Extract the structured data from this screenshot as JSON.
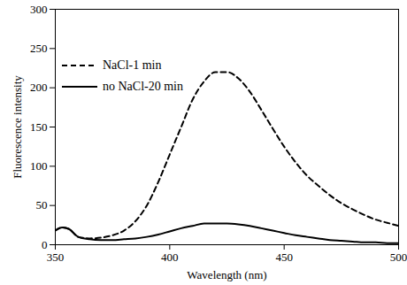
{
  "chart_data": {
    "type": "line",
    "x_label": "Wavelength (nm)",
    "y_label": "Fluorescence intensity",
    "x": [
      350,
      353,
      356,
      360,
      365,
      370,
      375,
      380,
      385,
      390,
      395,
      400,
      405,
      410,
      415,
      420,
      425,
      430,
      435,
      440,
      445,
      450,
      455,
      460,
      465,
      470,
      475,
      480,
      485,
      490,
      495,
      500
    ],
    "series": [
      {
        "name": "NaCl-1 min",
        "color": "#000000",
        "line_style": "dashed",
        "values": [
          18,
          22,
          20,
          10,
          8,
          9,
          12,
          18,
          30,
          50,
          80,
          115,
          150,
          185,
          208,
          220,
          220,
          212,
          195,
          172,
          148,
          125,
          105,
          88,
          75,
          63,
          53,
          45,
          38,
          32,
          28,
          24
        ]
      },
      {
        "name": "no NaCl-20 min",
        "color": "#000000",
        "line_style": "solid",
        "values": [
          18,
          22,
          20,
          10,
          7,
          6,
          6,
          7,
          8,
          10,
          13,
          17,
          21,
          24,
          27,
          27,
          27,
          26,
          24,
          21,
          18,
          15,
          12,
          10,
          8,
          6,
          5,
          4,
          3,
          3,
          2,
          2
        ]
      }
    ],
    "xlim": [
      350,
      500
    ],
    "xticks": [
      350,
      400,
      450,
      500
    ],
    "ylim": [
      0,
      300
    ],
    "yticks": [
      0,
      50,
      100,
      150,
      200,
      250,
      300
    ],
    "grid": false,
    "legend": "upper left"
  }
}
